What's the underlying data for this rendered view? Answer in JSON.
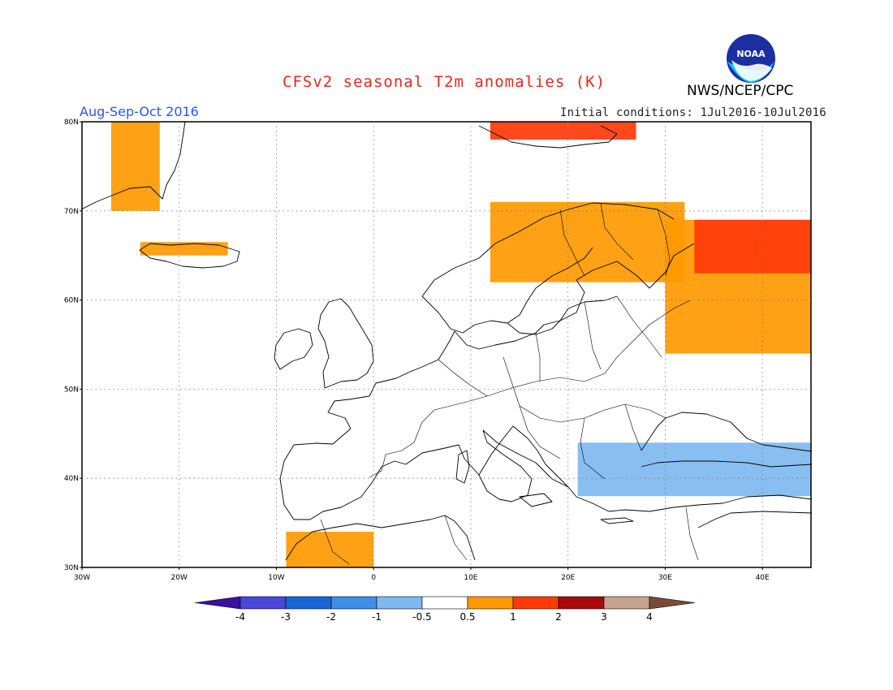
{
  "title": "CFSv2 seasonal T2m anomalies (K)",
  "agency": "NWS/NCEP/CPC",
  "logo_text": "NOAA",
  "season": "Aug-Sep-Oct 2016",
  "initial_conditions": "Initial conditions: 1Jul2016-10Jul2016",
  "map": {
    "lon_range": [
      -30,
      45
    ],
    "lat_range": [
      30,
      80
    ],
    "lat_labels": [
      "80N",
      "70N",
      "60N",
      "50N",
      "40N",
      "30N"
    ],
    "lon_labels": [
      "30W",
      "20W",
      "10W",
      "0",
      "10E",
      "20E",
      "30E",
      "40E"
    ]
  },
  "legend": {
    "labels": [
      "-4",
      "-3",
      "-2",
      "-1",
      "-0.5",
      "0.5",
      "1",
      "2",
      "3",
      "4"
    ],
    "colors": [
      "#3a10a0",
      "#4a46d6",
      "#1a66d4",
      "#3d8ee6",
      "#7fb9f0",
      "#ffffff",
      "#ff9900",
      "#ff3a0a",
      "#a80a0a",
      "#c8a290",
      "#7a4a38"
    ]
  },
  "anomaly_regions": [
    {
      "name": "greenland-east",
      "color": "#ff9900",
      "lon": [
        -27,
        -22
      ],
      "lat": [
        70,
        80
      ]
    },
    {
      "name": "iceland",
      "color": "#ff9900",
      "lon": [
        -24,
        -15
      ],
      "lat": [
        65,
        66.5
      ]
    },
    {
      "name": "svalbard",
      "color": "#ff3a0a",
      "lon": [
        12,
        27
      ],
      "lat": [
        78,
        80
      ]
    },
    {
      "name": "scandinavia-north",
      "color": "#ff9900",
      "lon": [
        12,
        32
      ],
      "lat": [
        62,
        71
      ]
    },
    {
      "name": "northwest-russia",
      "color": "#ff9900",
      "lon": [
        30,
        45
      ],
      "lat": [
        54,
        69
      ]
    },
    {
      "name": "kola-white-sea",
      "color": "#ff3a0a",
      "lon": [
        33,
        45
      ],
      "lat": [
        63,
        69
      ]
    },
    {
      "name": "north-africa",
      "color": "#ff9900",
      "lon": [
        -9,
        0
      ],
      "lat": [
        30,
        34
      ]
    },
    {
      "name": "balkans-turkey",
      "color": "#7fb9f0",
      "lon": [
        21,
        45
      ],
      "lat": [
        38,
        44
      ]
    }
  ]
}
